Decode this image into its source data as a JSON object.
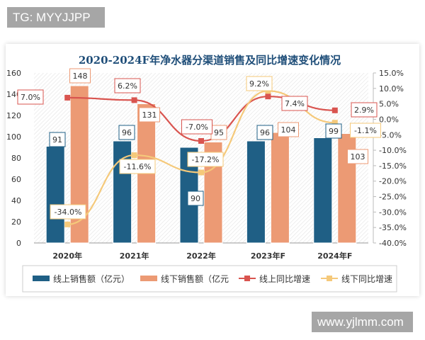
{
  "watermarks": {
    "top_left": "TG: MYYJJPP",
    "bottom_right": "www.yjlmm.com"
  },
  "colors": {
    "online_bar": "#1f5f85",
    "offline_bar": "#ec9a74",
    "online_line": "#d9544f",
    "offline_line": "#f5c97a"
  },
  "chart_data": {
    "type": "bar+line",
    "title": "2020-2024F年净水器分渠道销售及同比增速变化情况",
    "categories": [
      "2020年",
      "2021年",
      "2022年",
      "2023年F",
      "2024年F"
    ],
    "left_axis": {
      "min": 0,
      "max": 160,
      "ticks": [
        "0",
        "20",
        "40",
        "60",
        "80",
        "100",
        "120",
        "140",
        "160"
      ]
    },
    "right_axis": {
      "min": -40,
      "max": 15,
      "ticks": [
        "-40.0%",
        "-35.0%",
        "-30.0%",
        "-25.0%",
        "-20.0%",
        "-15.0%",
        "-10.0%",
        "-5.0%",
        "0.0%",
        "5.0%",
        "10.0%",
        "15.0%"
      ]
    },
    "series": [
      {
        "name": "线上销售额（亿元）",
        "type": "bar",
        "axis": "left",
        "values": [
          91,
          96,
          90,
          96,
          99
        ],
        "labels": [
          "91",
          "96",
          "90",
          "96",
          "99"
        ]
      },
      {
        "name": "线下销售额（亿元",
        "type": "bar",
        "axis": "left",
        "values": [
          148,
          131,
          95,
          104,
          103
        ],
        "labels": [
          "148",
          "131",
          "95",
          "104",
          "103"
        ]
      },
      {
        "name": "线上同比增速",
        "type": "line",
        "axis": "right",
        "values": [
          7.0,
          6.2,
          -7.0,
          7.4,
          2.9
        ],
        "labels": [
          "7.0%",
          "6.2%",
          "-7.0%",
          "7.4%",
          "2.9%"
        ]
      },
      {
        "name": "线下同比增速",
        "type": "line",
        "axis": "right",
        "values": [
          -34.0,
          -11.6,
          -17.2,
          9.2,
          -1.1
        ],
        "labels": [
          "-34.0%",
          "-11.6%",
          "-17.2%",
          "9.2%",
          "-1.1%"
        ]
      }
    ],
    "legend_position": "bottom",
    "grid": false
  }
}
